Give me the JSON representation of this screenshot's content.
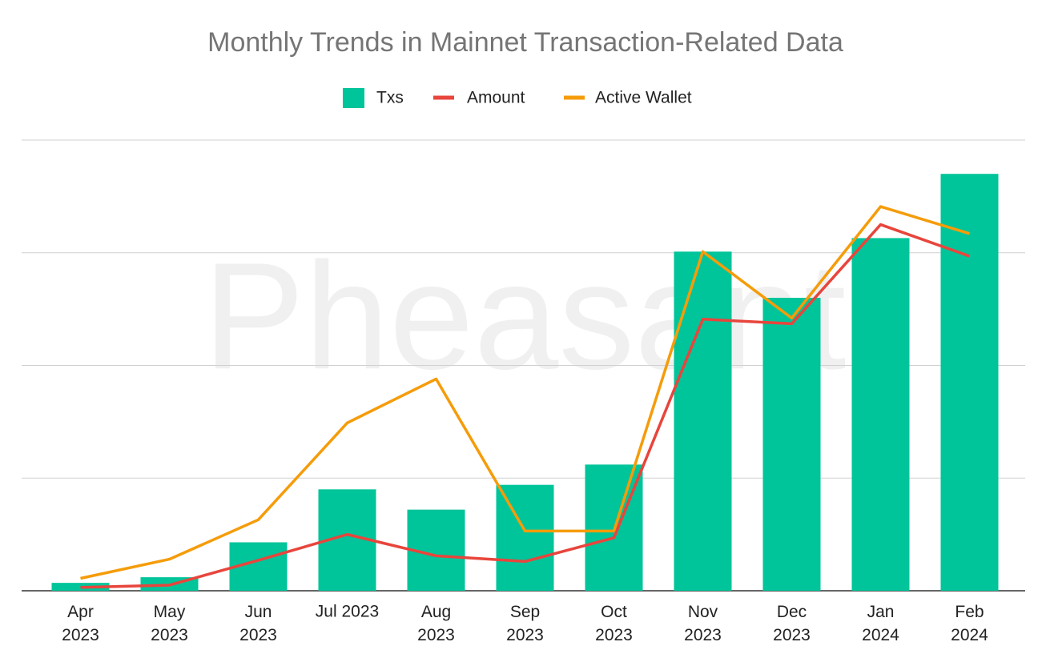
{
  "chart_data": {
    "type": "bar",
    "title": "Monthly Trends in Mainnet Transaction-Related Data",
    "watermark": "Pheasant",
    "categories": [
      "Apr\n2023",
      "May\n2023",
      "Jun\n2023",
      "Jul 2023",
      "Aug\n2023",
      "Sep\n2023",
      "Oct\n2023",
      "Nov\n2023",
      "Dec\n2023",
      "Jan\n2024",
      "Feb\n2024"
    ],
    "series": [
      {
        "name": "Txs",
        "type": "bar",
        "color": "#00c49a",
        "values": [
          0.07,
          0.12,
          0.43,
          0.9,
          0.72,
          0.94,
          1.12,
          3.01,
          2.6,
          3.13,
          3.7
        ]
      },
      {
        "name": "Amount",
        "type": "line",
        "color": "#e8453c",
        "values": [
          0.03,
          0.05,
          0.27,
          0.5,
          0.31,
          0.26,
          0.47,
          2.41,
          2.37,
          3.25,
          2.97
        ]
      },
      {
        "name": "Active Wallet",
        "type": "line",
        "color": "#f59c0a",
        "values": [
          0.11,
          0.28,
          0.63,
          1.49,
          1.88,
          0.53,
          0.53,
          3.01,
          2.42,
          3.41,
          3.17
        ]
      }
    ],
    "ylim": [
      0,
      4
    ],
    "yticks": [
      0,
      1,
      2,
      3,
      4
    ],
    "grid": true,
    "legend": "top"
  }
}
